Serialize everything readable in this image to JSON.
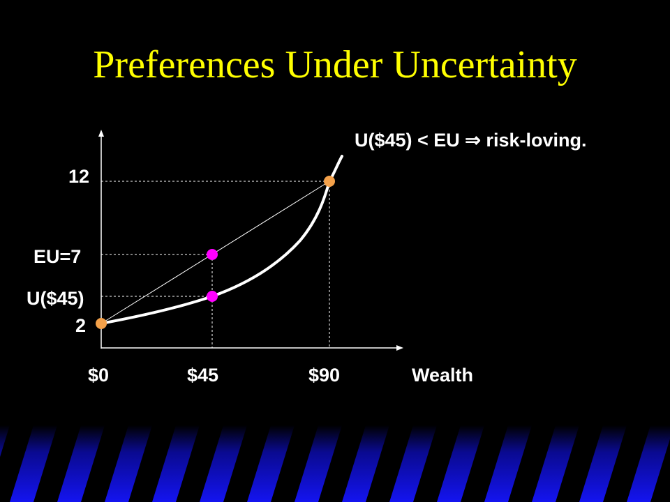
{
  "slide": {
    "title": "Preferences Under Uncertainty",
    "annotation": "U($45) < EU  ⇒ risk-loving.",
    "colors": {
      "title": "#FFFF00",
      "background": "#000000",
      "text": "#FFFFFF",
      "endpoint_marker": "#F4A14A",
      "midpoint_marker": "#FF00FF",
      "stripe_blue": "#1010E8"
    }
  },
  "diagram": {
    "y_tick_labels": {
      "high": "12",
      "eu": "EU=7",
      "u45": "U($45)",
      "low": "2"
    },
    "x_tick_labels": {
      "zero": "$0",
      "mid": "$45",
      "high": "$90"
    },
    "x_axis_label": "Wealth",
    "points": {
      "low_wealth": {
        "wealth": 0,
        "utility": 2
      },
      "high_wealth": {
        "wealth": 90,
        "utility": 12
      },
      "expected_utility": {
        "wealth": 45,
        "utility": 7
      },
      "utility_of_expected_wealth": {
        "wealth": 45
      }
    }
  }
}
